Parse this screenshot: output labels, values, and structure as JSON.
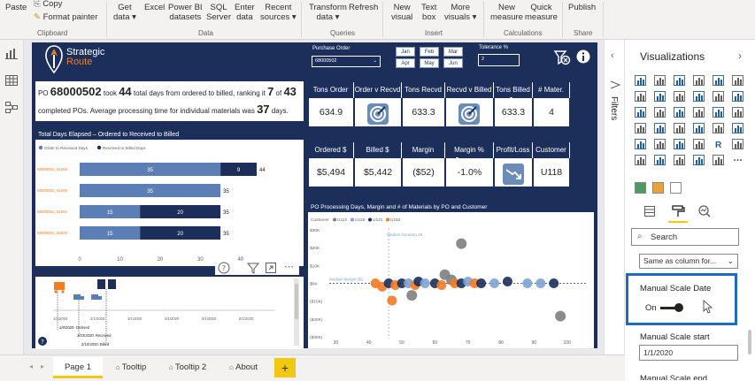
{
  "ribbon": {
    "paste": "Paste",
    "copy": "Copy",
    "format_painter": "Format painter",
    "get_data_1": "Get",
    "get_data_2": "data",
    "excel": "Excel",
    "powerbi_1": "Power BI",
    "powerbi_2": "datasets",
    "sql_1": "SQL",
    "sql_2": "Server",
    "enter_1": "Enter",
    "enter_2": "data",
    "recent_1": "Recent",
    "recent_2": "sources",
    "transform_1": "Transform",
    "transform_2": "data",
    "refresh": "Refresh",
    "newvisual_1": "New",
    "newvisual_2": "visual",
    "textbox_1": "Text",
    "textbox_2": "box",
    "more_1": "More",
    "more_2": "visuals",
    "newmeasure_1": "New",
    "newmeasure_2": "measure",
    "quick_1": "Quick",
    "quick_2": "measure",
    "publish": "Publish",
    "groups": {
      "clipboard": "Clipboard",
      "data": "Data",
      "queries": "Queries",
      "insert": "Insert",
      "calculations": "Calculations",
      "share": "Share"
    }
  },
  "report": {
    "logo_1": "Strategic",
    "logo_2": "Route",
    "po_label": "Purchase Order",
    "po_value": "68000502",
    "months": [
      "Jan",
      "Feb",
      "Mar",
      "Apr",
      "May",
      "Jun"
    ],
    "tolerance_label": "Tolerance %",
    "tolerance_value": "2",
    "summary": {
      "t1": "PO ",
      "po": "68000502",
      "t2": " took ",
      "days": "44",
      "t3": " total days from ordered to billed, ranking it ",
      "rank": "7",
      "t4": " of ",
      "total": "43",
      "t5": "completed POs. Average processing time for individual materials was ",
      "avg": "37",
      "t6": " days."
    },
    "kpi1": {
      "headers": [
        "Tons Order",
        "Order v Recvd",
        "Tons Recvd",
        "Recvd v Billed",
        "Tons Billed",
        "# Mater."
      ],
      "values": [
        "634.9",
        "",
        "633.3",
        "",
        "633.3",
        "4"
      ]
    },
    "kpi2": {
      "headers": [
        "Ordered $",
        "Billed $",
        "Margin",
        "Margin %",
        "Profit/Loss",
        "Customer"
      ],
      "values": [
        "$5,494",
        "$5,442",
        "($52)",
        "-1.0%",
        "",
        "U118"
      ]
    },
    "scatter_title": "PO Processing Days, Margin and # of Materials by PO and Customer",
    "scatter_legend_label": "Customer",
    "scatter_legend": [
      "U112",
      "U118",
      "U131",
      "U162"
    ],
    "median_duration": "Median Duration 46",
    "median_margin": "Median Margin ($1",
    "timeline_labels": [
      "1/1/2020",
      "2/1/2020",
      "3/1/2020",
      "4/1/2020",
      "5/1/2020",
      "6/1/2020"
    ],
    "timeline_events": [
      "1/8/2020: Ordered",
      "1/23/2020: Received",
      "2/10/2020: Billed"
    ]
  },
  "chart_data": [
    {
      "type": "bar",
      "title": "Total Days Elapsed – Ordered to Received to Billed",
      "legend": [
        "Order to Received Days",
        "Received to Billed Days"
      ],
      "categories": [
        "68000502_61066",
        "68000502_61090",
        "68000502_61091",
        "68000502_62020"
      ],
      "series": [
        {
          "name": "Order to Received Days",
          "values": [
            35,
            35,
            15,
            15
          ]
        },
        {
          "name": "Received to Billed Days",
          "values": [
            9,
            0,
            20,
            20
          ]
        }
      ],
      "totals": [
        "44",
        "35",
        "35",
        "35"
      ],
      "segment_labels": [
        [
          "35",
          "9"
        ],
        [
          "35",
          ""
        ],
        [
          "15",
          "20"
        ],
        [
          "15",
          "20"
        ]
      ],
      "xticks": [
        "0",
        "10",
        "20",
        "30",
        "40"
      ],
      "xlim": [
        0,
        44
      ],
      "colors": [
        "#5b7fb5",
        "#1c2f5b"
      ]
    },
    {
      "type": "scatter",
      "title": "PO Processing Days, Margin and # of Materials by PO and Customer",
      "xticks": [
        "30",
        "40",
        "50",
        "60",
        "70",
        "80",
        "90",
        "100"
      ],
      "yticks": [
        "$30K",
        "$20K",
        "$10K",
        "$0K",
        "($10K)",
        "($20K)",
        "($30K)"
      ],
      "xlim": [
        28,
        106
      ],
      "ylim": [
        -32000,
        32000
      ],
      "points": [
        {
          "x": 42,
          "y": 0,
          "c": "#f47b20"
        },
        {
          "x": 44,
          "y": -2000,
          "c": "#f47b20"
        },
        {
          "x": 46,
          "y": 0,
          "c": "#1c2f5b"
        },
        {
          "x": 48,
          "y": -1000,
          "c": "#f47b20"
        },
        {
          "x": 50,
          "y": 0,
          "c": "#1c2f5b"
        },
        {
          "x": 52,
          "y": 0,
          "c": "#7ca4d4"
        },
        {
          "x": 54,
          "y": -1000,
          "c": "#f47b20"
        },
        {
          "x": 55,
          "y": 1000,
          "c": "#1c2f5b"
        },
        {
          "x": 57,
          "y": 0,
          "c": "#7ca4d4"
        },
        {
          "x": 60,
          "y": 0,
          "c": "#1c2f5b"
        },
        {
          "x": 62,
          "y": -1000,
          "c": "#f47b20"
        },
        {
          "x": 65,
          "y": 2000,
          "c": "#7f7f7f"
        },
        {
          "x": 66,
          "y": 0,
          "c": "#f47b20"
        },
        {
          "x": 68,
          "y": 0,
          "c": "#1c2f5b"
        },
        {
          "x": 70,
          "y": 1000,
          "c": "#7ca4d4"
        },
        {
          "x": 72,
          "y": 0,
          "c": "#f47b20"
        },
        {
          "x": 74,
          "y": 0,
          "c": "#1c2f5b"
        },
        {
          "x": 78,
          "y": 0,
          "c": "#7ca4d4"
        },
        {
          "x": 82,
          "y": 1000,
          "c": "#1c2f5b"
        },
        {
          "x": 88,
          "y": 0,
          "c": "#7ca4d4"
        },
        {
          "x": 92,
          "y": 0,
          "c": "#7ca4d4"
        },
        {
          "x": 96,
          "y": 0,
          "c": "#1c2f5b"
        },
        {
          "x": 47,
          "y": -10000,
          "c": "#f47b20"
        },
        {
          "x": 53,
          "y": -7000,
          "c": "#7f7f7f"
        },
        {
          "x": 68,
          "y": 23000,
          "c": "#7f7f7f"
        },
        {
          "x": 98,
          "y": -19000,
          "c": "#7f7f7f"
        },
        {
          "x": 63,
          "y": 5000,
          "c": "#7f7f7f"
        }
      ]
    }
  ],
  "filters_label": "Filters",
  "viz": {
    "title": "Visualizations",
    "search_placeholder": "Search",
    "dropdown": "Same as column for...",
    "manual_scale_label": "Manual Scale Date",
    "toggle_state": "On",
    "manual_start_label": "Manual Scale start",
    "manual_start_value": "1/1/2020",
    "cut_label": "Manual Scale end"
  },
  "tabs": [
    "Page 1",
    "Tooltip",
    "Tooltip 2",
    "About"
  ],
  "add_tab": "+",
  "colors": {
    "navy": "#1c2f5b",
    "bar_light": "#5b7fb5",
    "accent_orange": "#f47b20",
    "highlight_blue": "#1e6bbf",
    "tab_yellow": "#f2c811"
  }
}
